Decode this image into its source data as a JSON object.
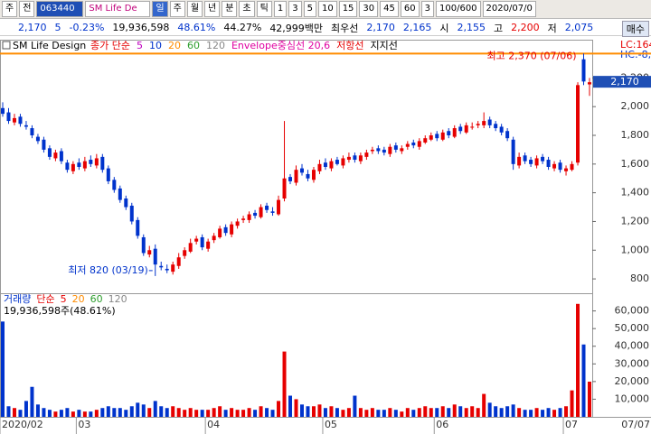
{
  "toolbar": {
    "items": [
      "주",
      "전",
      "063440",
      "SM Life De",
      "일",
      "주",
      "월",
      "년",
      "분",
      "초",
      "틱",
      "1",
      "3",
      "5",
      "10",
      "15",
      "30",
      "45",
      "60",
      "3",
      "100/600",
      "2020/07/0"
    ]
  },
  "quote": {
    "items": [
      "2,170",
      "5",
      "-0.23%",
      "19,936,598",
      "48.61%",
      "44.27%",
      "42,999백만",
      "최우선",
      "2,170",
      "2,165",
      "시",
      "2,155",
      "고",
      "2,200",
      "저",
      "2,075"
    ],
    "button": "매수"
  },
  "chart_data": [
    {
      "type": "candlestick",
      "title": "SM Life Design",
      "legend": [
        {
          "label": "종가 단순",
          "color": "#e60000"
        },
        {
          "label": "5",
          "color": "#c000c0"
        },
        {
          "label": "10",
          "color": "#0033cc"
        },
        {
          "label": "20",
          "color": "#ff8c00"
        },
        {
          "label": "60",
          "color": "#2e9e2e"
        },
        {
          "label": "120",
          "color": "#888888"
        },
        {
          "label": "Envelope중심선 20,6",
          "color": "#e000a0"
        },
        {
          "label": "저항선",
          "color": "#e60000"
        },
        {
          "label": "지지선",
          "color": "#000000"
        }
      ],
      "corner_labels": [
        "LC:164",
        "HC:-8,"
      ],
      "annotations": [
        "최고 2,370 (07/06)",
        "최저 820 (03/19)"
      ],
      "up_color": "#e60000",
      "down_color": "#0033cc",
      "high_line_color": "#ff8c00",
      "open": [
        1990,
        1960,
        1890,
        1930,
        1870,
        1850,
        1790,
        1770,
        1710,
        1640,
        1690,
        1610,
        1550,
        1610,
        1570,
        1630,
        1590,
        1650,
        1570,
        1490,
        1430,
        1360,
        1310,
        1210,
        1090,
        970,
        1010,
        890,
        870,
        850,
        890,
        960,
        990,
        1060,
        1090,
        1010,
        1070,
        1090,
        1160,
        1110,
        1170,
        1210,
        1210,
        1260,
        1230,
        1310,
        1270,
        1250,
        1360,
        1510,
        1470,
        1570,
        1530,
        1490,
        1550,
        1610,
        1570,
        1630,
        1590,
        1630,
        1660,
        1620,
        1650,
        1690,
        1710,
        1700,
        1670,
        1730,
        1690,
        1720,
        1750,
        1720,
        1750,
        1770,
        1810,
        1770,
        1830,
        1790,
        1860,
        1820,
        1860,
        1870,
        1870,
        1910,
        1880,
        1860,
        1830,
        1770,
        1590,
        1660,
        1630,
        1590,
        1650,
        1630,
        1570,
        1610,
        1550,
        1560,
        1610,
        2330,
        2155
      ],
      "high": [
        2030,
        1990,
        1950,
        1950,
        1900,
        1870,
        1810,
        1790,
        1730,
        1700,
        1710,
        1630,
        1620,
        1640,
        1650,
        1660,
        1670,
        1670,
        1590,
        1510,
        1450,
        1380,
        1330,
        1230,
        1110,
        1030,
        1040,
        920,
        900,
        920,
        980,
        1020,
        1080,
        1100,
        1110,
        1080,
        1120,
        1170,
        1180,
        1200,
        1220,
        1240,
        1270,
        1280,
        1320,
        1330,
        1300,
        1380,
        1900,
        1530,
        1590,
        1600,
        1560,
        1580,
        1630,
        1640,
        1640,
        1650,
        1660,
        1680,
        1680,
        1680,
        1700,
        1720,
        1730,
        1720,
        1740,
        1750,
        1730,
        1760,
        1770,
        1780,
        1800,
        1820,
        1830,
        1840,
        1850,
        1870,
        1880,
        1890,
        1890,
        1900,
        1960,
        1930,
        1900,
        1880,
        1850,
        1790,
        1680,
        1680,
        1650,
        1660,
        1670,
        1650,
        1620,
        1630,
        1590,
        1620,
        2170,
        2370,
        2200
      ],
      "low": [
        1930,
        1880,
        1870,
        1860,
        1840,
        1780,
        1740,
        1680,
        1630,
        1620,
        1600,
        1540,
        1530,
        1560,
        1550,
        1580,
        1570,
        1540,
        1460,
        1400,
        1330,
        1280,
        1180,
        1080,
        960,
        950,
        820,
        860,
        840,
        830,
        870,
        940,
        980,
        1040,
        1000,
        990,
        1050,
        1080,
        1100,
        1090,
        1150,
        1190,
        1190,
        1220,
        1220,
        1260,
        1240,
        1240,
        1340,
        1460,
        1450,
        1520,
        1480,
        1470,
        1530,
        1560,
        1550,
        1590,
        1570,
        1610,
        1610,
        1600,
        1630,
        1670,
        1670,
        1660,
        1650,
        1680,
        1670,
        1700,
        1710,
        1700,
        1740,
        1760,
        1760,
        1760,
        1780,
        1780,
        1810,
        1810,
        1840,
        1850,
        1850,
        1850,
        1830,
        1800,
        1760,
        1560,
        1570,
        1600,
        1580,
        1570,
        1600,
        1560,
        1550,
        1540,
        1520,
        1550,
        1590,
        2150,
        2075
      ],
      "close": [
        1950,
        1900,
        1920,
        1880,
        1860,
        1800,
        1760,
        1700,
        1650,
        1680,
        1620,
        1560,
        1600,
        1580,
        1620,
        1600,
        1640,
        1560,
        1480,
        1420,
        1350,
        1300,
        1200,
        1100,
        980,
        1000,
        900,
        880,
        860,
        900,
        950,
        1000,
        1050,
        1080,
        1020,
        1060,
        1100,
        1150,
        1120,
        1180,
        1200,
        1220,
        1250,
        1240,
        1300,
        1280,
        1260,
        1350,
        1500,
        1480,
        1560,
        1540,
        1500,
        1560,
        1600,
        1580,
        1620,
        1600,
        1640,
        1650,
        1630,
        1660,
        1680,
        1700,
        1690,
        1680,
        1720,
        1700,
        1710,
        1740,
        1730,
        1760,
        1780,
        1800,
        1780,
        1820,
        1800,
        1850,
        1830,
        1870,
        1860,
        1880,
        1900,
        1870,
        1850,
        1820,
        1780,
        1600,
        1650,
        1620,
        1600,
        1640,
        1620,
        1580,
        1600,
        1560,
        1570,
        1600,
        2150,
        2175,
        2170
      ],
      "ylim": [
        700,
        2460
      ],
      "yticks": [
        {
          "value": 800,
          "label": "800"
        },
        {
          "value": 1000,
          "label": "1,000"
        },
        {
          "value": 1200,
          "label": "1,200"
        },
        {
          "value": 1400,
          "label": "1,400"
        },
        {
          "value": 1600,
          "label": "1,600"
        },
        {
          "value": 1800,
          "label": "1,800"
        },
        {
          "value": 2000,
          "label": "2,000"
        },
        {
          "value": 2200,
          "label": "2,200"
        }
      ]
    },
    {
      "type": "bar",
      "title": "거래량",
      "legend": [
        {
          "label": "단순",
          "color": "#e60000"
        },
        {
          "label": "5",
          "color": "#e60000"
        },
        {
          "label": "20",
          "color": "#ff8c00"
        },
        {
          "label": "60",
          "color": "#2e9e2e"
        },
        {
          "label": "120",
          "color": "#888888"
        }
      ],
      "annotation": "19,936,598주(48.61%)",
      "up_color": "#e60000",
      "down_color": "#0033cc",
      "categories": [
        "2020/02",
        null,
        null,
        null,
        null,
        null,
        null,
        null,
        null,
        null,
        null,
        null,
        null,
        "03",
        null,
        null,
        null,
        null,
        null,
        null,
        null,
        null,
        null,
        null,
        null,
        null,
        null,
        null,
        null,
        null,
        null,
        null,
        null,
        null,
        null,
        "04",
        null,
        null,
        null,
        null,
        null,
        null,
        null,
        null,
        null,
        null,
        null,
        null,
        null,
        null,
        null,
        null,
        null,
        null,
        null,
        "05",
        null,
        null,
        null,
        null,
        null,
        null,
        null,
        null,
        null,
        null,
        null,
        null,
        null,
        null,
        null,
        null,
        null,
        null,
        "06",
        null,
        null,
        null,
        null,
        null,
        null,
        null,
        null,
        null,
        null,
        null,
        null,
        null,
        null,
        null,
        null,
        null,
        null,
        null,
        null,
        null,
        "07",
        null,
        null,
        null,
        null
      ],
      "x_end_label": "07/07",
      "values": [
        54000,
        6000,
        5000,
        4000,
        9000,
        17000,
        7000,
        5000,
        4000,
        3000,
        4000,
        5000,
        3000,
        4000,
        3000,
        3000,
        4000,
        5000,
        6000,
        5000,
        5000,
        4000,
        6000,
        8000,
        7000,
        5000,
        9000,
        6000,
        5000,
        6000,
        5000,
        4000,
        5000,
        4000,
        4000,
        4000,
        5000,
        6000,
        4000,
        5000,
        4000,
        4000,
        5000,
        4000,
        6000,
        5000,
        4000,
        9000,
        37000,
        12000,
        10000,
        7000,
        6000,
        6000,
        7000,
        5000,
        6000,
        5000,
        4000,
        5000,
        12000,
        5000,
        4000,
        5000,
        4000,
        4000,
        5000,
        4000,
        3000,
        5000,
        4000,
        5000,
        6000,
        5000,
        5000,
        6000,
        5000,
        7000,
        6000,
        5000,
        6000,
        5000,
        13000,
        8000,
        6000,
        5000,
        6000,
        7000,
        5000,
        4000,
        4000,
        5000,
        4000,
        5000,
        4000,
        5000,
        6000,
        15000,
        64000,
        41000,
        19937
      ],
      "ylim": [
        0,
        69000
      ],
      "yticks": [
        {
          "value": 10000,
          "label": "10,000"
        },
        {
          "value": 20000,
          "label": "20,000"
        },
        {
          "value": 30000,
          "label": "30,000"
        },
        {
          "value": 40000,
          "label": "40,000"
        },
        {
          "value": 50000,
          "label": "50,000"
        },
        {
          "value": 60000,
          "label": "60,000"
        }
      ]
    }
  ]
}
